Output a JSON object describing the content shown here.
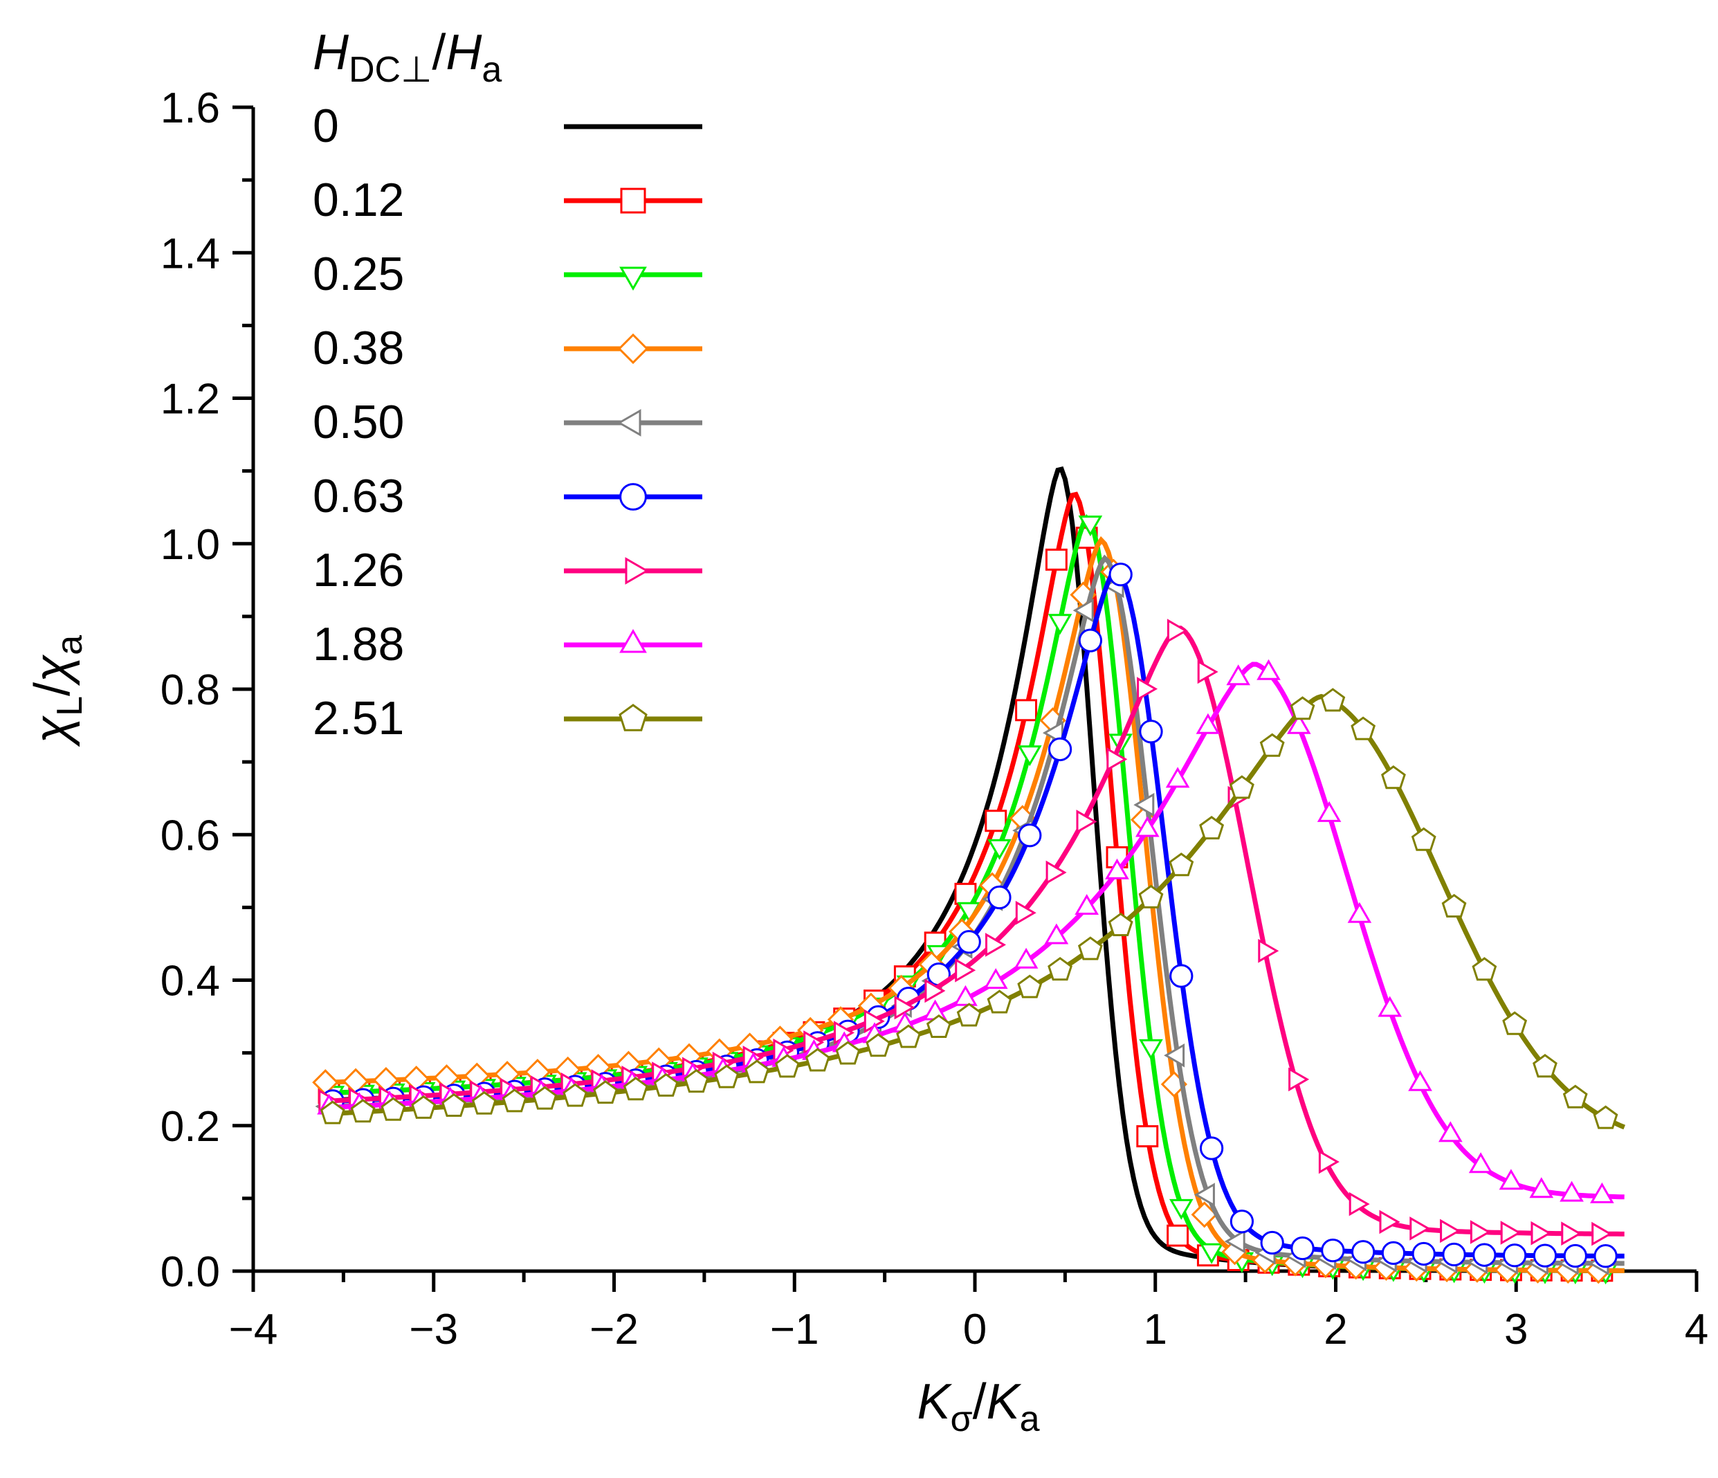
{
  "chart_data": {
    "type": "line",
    "xlabel": {
      "main": "K",
      "sub": "σ",
      "sep": "/",
      "main2": "K",
      "sub2": "a"
    },
    "ylabel": {
      "main": "χ",
      "sub": "L",
      "sep": "/",
      "main2": "χ",
      "sub2": "a"
    },
    "xlim": [
      -4,
      4
    ],
    "ylim": [
      0,
      1.6
    ],
    "xticks": [
      -4,
      -3,
      -2,
      -1,
      0,
      1,
      2,
      3,
      4
    ],
    "xtick_labels": [
      "−4",
      "−3",
      "−2",
      "−1",
      "0",
      "1",
      "2",
      "3",
      "4"
    ],
    "yticks": [
      0,
      0.2,
      0.4,
      0.6,
      0.8,
      1.0,
      1.2,
      1.4,
      1.6
    ],
    "ytick_labels": [
      "0.0",
      "0.2",
      "0.4",
      "0.6",
      "0.8",
      "1.0",
      "1.2",
      "1.4",
      "1.6"
    ],
    "legend": {
      "title": {
        "main": "H",
        "sub": "DC⊥",
        "sep": "/",
        "main2": "H",
        "sub2": "a"
      },
      "position": "top-left"
    },
    "series": [
      {
        "name": "0",
        "color": "#000000",
        "marker": "none",
        "peak_x": 0.47,
        "peak_y": 1.105,
        "left_y": 0.21,
        "right_y": 0.0,
        "sl": 0.38,
        "sr": 0.25
      },
      {
        "name": "0.12",
        "color": "#ff0000",
        "marker": "square",
        "peak_x": 0.55,
        "peak_y": 1.07,
        "left_y": 0.22,
        "right_y": 0.0,
        "sl": 0.4,
        "sr": 0.28
      },
      {
        "name": "0.25",
        "color": "#00ee00",
        "marker": "triangle-down",
        "peak_x": 0.62,
        "peak_y": 1.035,
        "left_y": 0.22,
        "right_y": 0.0,
        "sl": 0.42,
        "sr": 0.3
      },
      {
        "name": "0.38",
        "color": "#ff8000",
        "marker": "diamond",
        "peak_x": 0.7,
        "peak_y": 1.005,
        "left_y": 0.235,
        "right_y": 0.0,
        "sl": 0.44,
        "sr": 0.32
      },
      {
        "name": "0.50",
        "color": "#808080",
        "marker": "triangle-left",
        "peak_x": 0.72,
        "peak_y": 0.98,
        "left_y": 0.2,
        "right_y": 0.01,
        "sl": 0.46,
        "sr": 0.34
      },
      {
        "name": "0.63",
        "color": "#0000ff",
        "marker": "circle",
        "peak_x": 0.78,
        "peak_y": 0.965,
        "left_y": 0.205,
        "right_y": 0.02,
        "sl": 0.5,
        "sr": 0.36
      },
      {
        "name": "1.26",
        "color": "#ff0080",
        "marker": "triangle-right",
        "peak_x": 1.13,
        "peak_y": 0.885,
        "left_y": 0.195,
        "right_y": 0.05,
        "sl": 0.72,
        "sr": 0.52
      },
      {
        "name": "1.88",
        "color": "#ff00ff",
        "marker": "triangle-up",
        "peak_x": 1.55,
        "peak_y": 0.835,
        "left_y": 0.18,
        "right_y": 0.1,
        "sl": 0.9,
        "sr": 0.7
      },
      {
        "name": "2.51",
        "color": "#808000",
        "marker": "pentagon",
        "peak_x": 1.92,
        "peak_y": 0.79,
        "left_y": 0.165,
        "right_y": 0.17,
        "sl": 1.1,
        "sr": 0.9
      }
    ],
    "x_start": -3.6,
    "x_end": 3.6,
    "marker_step": 0.168
  }
}
